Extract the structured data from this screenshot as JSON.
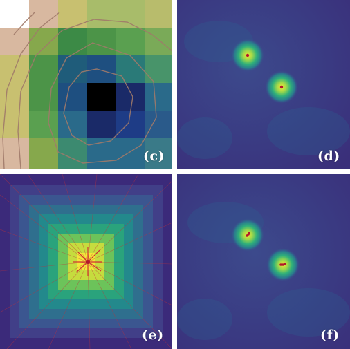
{
  "panels": {
    "c": {
      "label": "(c)"
    },
    "d": {
      "label": "(d)"
    },
    "e": {
      "label": "(e)"
    },
    "f": {
      "label": "(f)"
    }
  },
  "colors": {
    "background": "#ffffff",
    "label": "#ffffff",
    "viridis_dark": "#3b2a7a",
    "viridis_mid": "#2f6f8e",
    "viridis_bright": "#f3e73a",
    "marker": "#b2182b",
    "contour": "#a07a6a"
  }
}
